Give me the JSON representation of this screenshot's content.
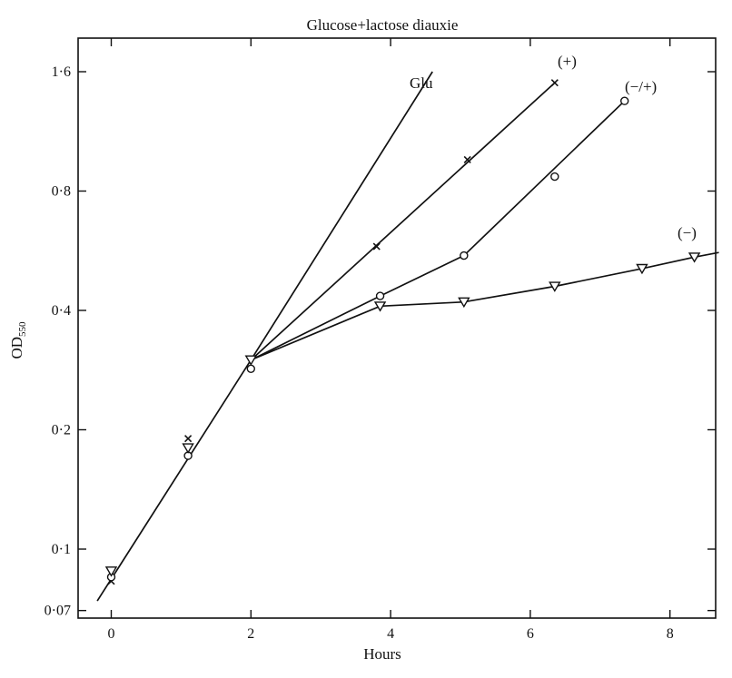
{
  "chart_data": {
    "type": "line",
    "title": "Glucose+lactose diauxie",
    "xlabel": "Hours",
    "ylabel": "OD",
    "ylabel_subscript": "550",
    "y_scale": "log",
    "xlim": [
      -0.5,
      8.7
    ],
    "ylim": [
      0.068,
      2.1
    ],
    "x_ticks": [
      0,
      2,
      4,
      6,
      8
    ],
    "x_tick_labels": [
      "0",
      "2",
      "4",
      "6",
      "8"
    ],
    "y_ticks": [
      0.07,
      0.1,
      0.2,
      0.4,
      0.8,
      1.6
    ],
    "y_tick_labels": [
      "0·07",
      "0·1",
      "0·2",
      "0·4",
      "0·8",
      "1·6"
    ],
    "grid": false,
    "series": [
      {
        "name": "Glu",
        "marker": "none",
        "line": [
          [
            -0.2,
            0.074
          ],
          [
            2.0,
            0.3
          ],
          [
            4.6,
            1.6
          ]
        ],
        "points": []
      },
      {
        "name": "(+)",
        "marker": "x",
        "line": [
          [
            2.0,
            0.3
          ],
          [
            6.35,
            1.5
          ]
        ],
        "points": [
          [
            0,
            0.083
          ],
          [
            1.1,
            0.19
          ],
          [
            3.8,
            0.58
          ],
          [
            5.1,
            0.96
          ],
          [
            6.35,
            1.5
          ]
        ]
      },
      {
        "name": "(−/+)",
        "marker": "circle",
        "line": [
          [
            2.0,
            0.3
          ],
          [
            3.85,
            0.435
          ],
          [
            5.05,
            0.55
          ],
          [
            7.35,
            1.35
          ]
        ],
        "points": [
          [
            0,
            0.085
          ],
          [
            1.1,
            0.172
          ],
          [
            2.0,
            0.285
          ],
          [
            3.85,
            0.435
          ],
          [
            5.05,
            0.55
          ],
          [
            6.35,
            0.87
          ],
          [
            7.35,
            1.35
          ]
        ]
      },
      {
        "name": "(−)",
        "marker": "triangle-down",
        "line": [
          [
            2.0,
            0.3
          ],
          [
            3.85,
            0.41
          ],
          [
            5.05,
            0.42
          ],
          [
            6.35,
            0.46
          ],
          [
            7.6,
            0.51
          ],
          [
            8.35,
            0.545
          ],
          [
            8.7,
            0.56
          ]
        ],
        "points": [
          [
            0,
            0.088
          ],
          [
            1.1,
            0.18
          ],
          [
            2.0,
            0.3
          ],
          [
            3.85,
            0.41
          ],
          [
            5.05,
            0.42
          ],
          [
            6.35,
            0.46
          ],
          [
            7.6,
            0.51
          ],
          [
            8.35,
            0.545
          ]
        ]
      }
    ]
  }
}
